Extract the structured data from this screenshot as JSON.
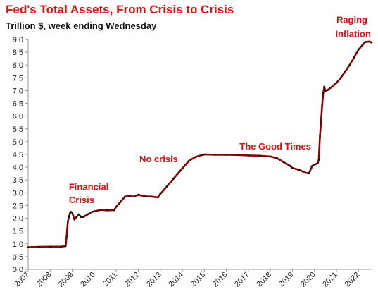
{
  "chart_data": {
    "type": "line",
    "title": "Fed's Total Assets, From Crisis to Crisis",
    "subtitle": "Trillion $, week ending Wednesday",
    "xlabel": "",
    "ylabel": "",
    "ylim": [
      0,
      9.0
    ],
    "yticks": [
      "0.0",
      "0.5",
      "1.0",
      "1.5",
      "2.0",
      "2.5",
      "3.0",
      "3.5",
      "4.0",
      "4.5",
      "5.0",
      "5.5",
      "6.0",
      "6.5",
      "7.0",
      "7.5",
      "8.0",
      "8.5",
      "9.0"
    ],
    "xlim": [
      2007.0,
      2022.6
    ],
    "xticks": [
      "2007",
      "2008",
      "2009",
      "2010",
      "2011",
      "2012",
      "2013",
      "2014",
      "2015",
      "2016",
      "2017",
      "2018",
      "2019",
      "2020",
      "2021",
      "2022"
    ],
    "grid": false,
    "legend": "none",
    "series": [
      {
        "color": "#8b0000",
        "x": [
          2007.0,
          2007.5,
          2008.0,
          2008.5,
          2008.7,
          2008.75,
          2008.8,
          2008.85,
          2008.9,
          2008.95,
          2009.0,
          2009.1,
          2009.2,
          2009.3,
          2009.4,
          2009.5,
          2009.7,
          2009.9,
          2010.0,
          2010.3,
          2010.6,
          2010.9,
          2011.0,
          2011.2,
          2011.4,
          2011.6,
          2011.8,
          2012.0,
          2012.3,
          2012.6,
          2012.9,
          2013.0,
          2013.3,
          2013.6,
          2013.9,
          2014.0,
          2014.3,
          2014.6,
          2014.9,
          2015.0,
          2015.5,
          2016.0,
          2016.5,
          2017.0,
          2017.5,
          2018.0,
          2018.3,
          2018.6,
          2018.9,
          2019.0,
          2019.3,
          2019.6,
          2019.75,
          2019.8,
          2019.9,
          2020.0,
          2020.15,
          2020.2,
          2020.25,
          2020.3,
          2020.35,
          2020.4,
          2020.45,
          2020.5,
          2020.6,
          2020.8,
          2021.0,
          2021.2,
          2021.4,
          2021.6,
          2021.8,
          2022.0,
          2022.2,
          2022.3,
          2022.5,
          2022.6
        ],
        "values": [
          0.87,
          0.88,
          0.89,
          0.89,
          0.91,
          1.3,
          1.85,
          2.05,
          2.2,
          2.25,
          2.22,
          1.95,
          2.05,
          2.15,
          2.05,
          2.05,
          2.15,
          2.25,
          2.27,
          2.33,
          2.31,
          2.32,
          2.45,
          2.65,
          2.85,
          2.87,
          2.85,
          2.92,
          2.86,
          2.85,
          2.82,
          2.95,
          3.25,
          3.55,
          3.85,
          3.95,
          4.25,
          4.4,
          4.48,
          4.5,
          4.49,
          4.49,
          4.48,
          4.46,
          4.45,
          4.42,
          4.35,
          4.2,
          4.05,
          3.97,
          3.9,
          3.78,
          3.76,
          3.85,
          4.05,
          4.1,
          4.15,
          4.3,
          5.2,
          5.8,
          6.4,
          6.9,
          7.15,
          6.98,
          7.02,
          7.15,
          7.3,
          7.5,
          7.75,
          8.0,
          8.3,
          8.6,
          8.8,
          8.9,
          8.92,
          8.88
        ]
      }
    ],
    "annotations": [
      {
        "text": "Financial",
        "x": 2008.85,
        "y": 3.1
      },
      {
        "text": "Crisis",
        "x": 2008.85,
        "y": 2.6
      },
      {
        "text": "No crisis",
        "x": 2012.05,
        "y": 4.2
      },
      {
        "text": "The Good Times",
        "x": 2016.6,
        "y": 4.7
      },
      {
        "text": "Raging",
        "x": 2021.0,
        "y": 9.65
      },
      {
        "text": "Inflation",
        "x": 2020.95,
        "y": 9.1
      }
    ]
  }
}
